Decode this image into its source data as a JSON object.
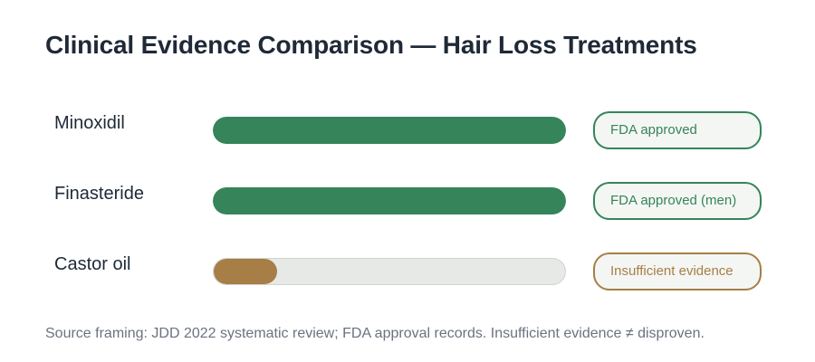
{
  "chart_data": {
    "type": "bar",
    "orientation": "horizontal",
    "title": "Clinical Evidence Comparison — Hair Loss Treatments",
    "categories": [
      "Minoxidil",
      "Finasteride",
      "Castor oil"
    ],
    "values": [
      100,
      100,
      18
    ],
    "xlabel": "",
    "ylabel": "",
    "xlim": [
      0,
      100
    ],
    "grid": false,
    "legend": null,
    "annotations": [
      "FDA approved",
      "FDA approved (men)",
      "Insufficient evidence"
    ],
    "footnote": "Source framing: JDD 2022 systematic review; FDA approval records. Insufficient evidence ≠ disproven."
  },
  "title": "Clinical Evidence Comparison — Hair Loss Treatments",
  "rows": [
    {
      "label": "Minoxidil",
      "value": 100,
      "color": "#35845a",
      "badge": "FDA approved",
      "badge_color": "#35845a"
    },
    {
      "label": "Finasteride",
      "value": 100,
      "color": "#35845a",
      "badge": "FDA approved (men)",
      "badge_color": "#35845a"
    },
    {
      "label": "Castor oil",
      "value": 18,
      "color": "#a67e46",
      "badge": "Insufficient evidence",
      "badge_color": "#a67e46"
    }
  ],
  "footer": "Source framing: JDD 2022 systematic review; FDA approval records. Insufficient evidence ≠ disproven."
}
